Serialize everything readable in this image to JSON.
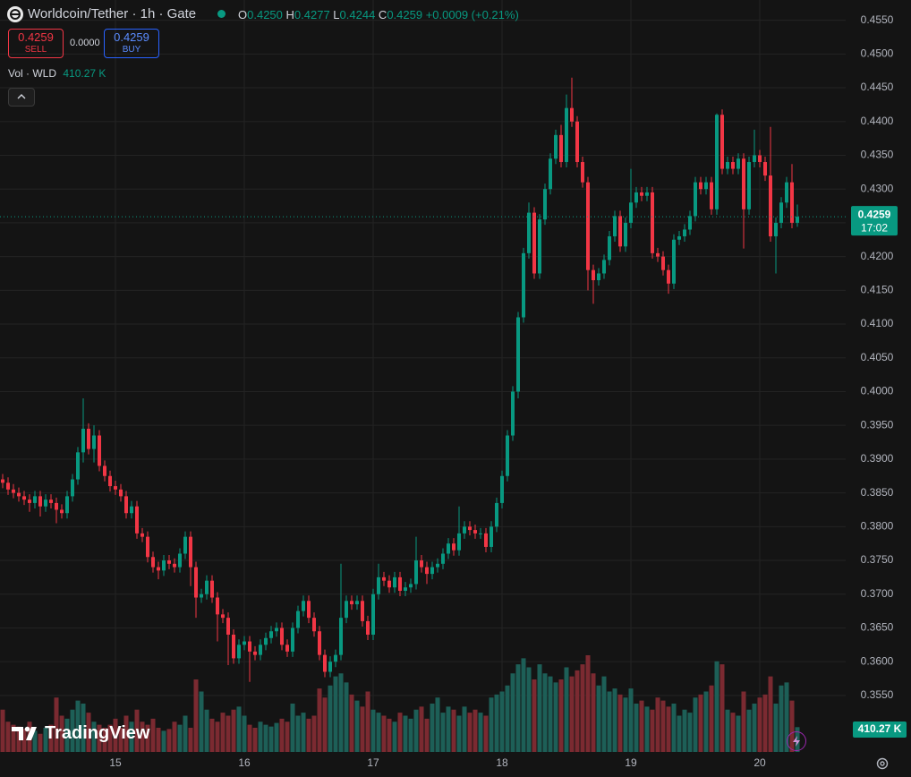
{
  "header": {
    "symbol": "Worldcoin/Tether · 1h · Gate",
    "ohlc": [
      {
        "label": "O",
        "value": "0.4250"
      },
      {
        "label": "H",
        "value": "0.4277"
      },
      {
        "label": "L",
        "value": "0.4244"
      },
      {
        "label": "C",
        "value": "0.4259"
      }
    ],
    "change": "+0.0009 (+0.21%)",
    "sell_price": "0.4259",
    "sell": "SELL",
    "spread": "0.0000",
    "buy_price": "0.4259",
    "buy": "BUY",
    "volume_title": "Vol · WLD",
    "volume_value": "410.27 K"
  },
  "branding": "TradingView",
  "chart_data": {
    "type": "candlestick",
    "candles": [
      [
        0.387,
        0.3878,
        0.3857,
        0.3865
      ],
      [
        0.3865,
        0.3873,
        0.3847,
        0.3855
      ],
      [
        0.3855,
        0.3863,
        0.3842,
        0.385
      ],
      [
        0.385,
        0.3858,
        0.3837,
        0.3845
      ],
      [
        0.3845,
        0.3853,
        0.3832,
        0.384
      ],
      [
        0.384,
        0.3848,
        0.3822,
        0.3835
      ],
      [
        0.3835,
        0.3853,
        0.3827,
        0.3845
      ],
      [
        0.3845,
        0.3853,
        0.3815,
        0.383
      ],
      [
        0.383,
        0.3848,
        0.3822,
        0.384
      ],
      [
        0.384,
        0.3848,
        0.3827,
        0.3835
      ],
      [
        0.3835,
        0.3843,
        0.3805,
        0.3825
      ],
      [
        0.3825,
        0.3833,
        0.3812,
        0.382
      ],
      [
        0.382,
        0.3853,
        0.3812,
        0.3845
      ],
      [
        0.3845,
        0.3878,
        0.3837,
        0.387
      ],
      [
        0.387,
        0.3918,
        0.3862,
        0.391
      ],
      [
        0.391,
        0.399,
        0.3895,
        0.3945
      ],
      [
        0.3945,
        0.3953,
        0.3907,
        0.3915
      ],
      [
        0.3915,
        0.395,
        0.3895,
        0.3935
      ],
      [
        0.3935,
        0.3943,
        0.3882,
        0.389
      ],
      [
        0.389,
        0.3898,
        0.3867,
        0.3875
      ],
      [
        0.3875,
        0.3883,
        0.3852,
        0.386
      ],
      [
        0.386,
        0.3868,
        0.3847,
        0.3855
      ],
      [
        0.3855,
        0.3863,
        0.3837,
        0.3845
      ],
      [
        0.3845,
        0.3853,
        0.3812,
        0.382
      ],
      [
        0.382,
        0.3838,
        0.3812,
        0.383
      ],
      [
        0.383,
        0.3838,
        0.3782,
        0.379
      ],
      [
        0.379,
        0.3798,
        0.3777,
        0.3785
      ],
      [
        0.3785,
        0.3793,
        0.3747,
        0.3755
      ],
      [
        0.3755,
        0.3763,
        0.3732,
        0.374
      ],
      [
        0.374,
        0.3748,
        0.3722,
        0.3735
      ],
      [
        0.3735,
        0.3758,
        0.3727,
        0.375
      ],
      [
        0.375,
        0.3758,
        0.3737,
        0.3745
      ],
      [
        0.3745,
        0.3753,
        0.3732,
        0.374
      ],
      [
        0.374,
        0.3768,
        0.3732,
        0.376
      ],
      [
        0.376,
        0.3793,
        0.3752,
        0.3785
      ],
      [
        0.3785,
        0.3793,
        0.3712,
        0.374
      ],
      [
        0.374,
        0.3748,
        0.3665,
        0.3695
      ],
      [
        0.3695,
        0.3708,
        0.3687,
        0.37
      ],
      [
        0.37,
        0.3728,
        0.3692,
        0.372
      ],
      [
        0.372,
        0.3728,
        0.3687,
        0.3695
      ],
      [
        0.3695,
        0.3703,
        0.363,
        0.367
      ],
      [
        0.367,
        0.3678,
        0.3657,
        0.3665
      ],
      [
        0.3665,
        0.3673,
        0.3595,
        0.364
      ],
      [
        0.364,
        0.3648,
        0.3597,
        0.3605
      ],
      [
        0.3605,
        0.3633,
        0.3597,
        0.3625
      ],
      [
        0.3625,
        0.3638,
        0.3617,
        0.363
      ],
      [
        0.363,
        0.3638,
        0.357,
        0.3615
      ],
      [
        0.3615,
        0.3623,
        0.3602,
        0.361
      ],
      [
        0.361,
        0.3633,
        0.3602,
        0.3625
      ],
      [
        0.3625,
        0.3643,
        0.3617,
        0.3635
      ],
      [
        0.3635,
        0.3653,
        0.3627,
        0.3645
      ],
      [
        0.3645,
        0.3658,
        0.3637,
        0.365
      ],
      [
        0.365,
        0.3658,
        0.3617,
        0.3625
      ],
      [
        0.3625,
        0.3633,
        0.3607,
        0.3615
      ],
      [
        0.3615,
        0.3658,
        0.3607,
        0.365
      ],
      [
        0.365,
        0.3683,
        0.3642,
        0.3675
      ],
      [
        0.3675,
        0.3698,
        0.3667,
        0.369
      ],
      [
        0.369,
        0.3698,
        0.3657,
        0.3665
      ],
      [
        0.3665,
        0.3673,
        0.3637,
        0.3645
      ],
      [
        0.3645,
        0.3653,
        0.3602,
        0.361
      ],
      [
        0.361,
        0.3618,
        0.3577,
        0.3585
      ],
      [
        0.3585,
        0.3608,
        0.3577,
        0.36
      ],
      [
        0.36,
        0.3618,
        0.3592,
        0.361
      ],
      [
        0.361,
        0.3745,
        0.3602,
        0.3665
      ],
      [
        0.3665,
        0.3698,
        0.3657,
        0.369
      ],
      [
        0.369,
        0.3698,
        0.3677,
        0.3685
      ],
      [
        0.3685,
        0.3698,
        0.3677,
        0.369
      ],
      [
        0.369,
        0.3698,
        0.3652,
        0.366
      ],
      [
        0.366,
        0.3668,
        0.3632,
        0.364
      ],
      [
        0.364,
        0.3708,
        0.3632,
        0.37
      ],
      [
        0.37,
        0.3745,
        0.3692,
        0.3725
      ],
      [
        0.3725,
        0.3733,
        0.3712,
        0.372
      ],
      [
        0.372,
        0.3728,
        0.3702,
        0.371
      ],
      [
        0.371,
        0.3733,
        0.3702,
        0.3725
      ],
      [
        0.3725,
        0.3733,
        0.3697,
        0.3705
      ],
      [
        0.3705,
        0.3718,
        0.3697,
        0.371
      ],
      [
        0.371,
        0.3723,
        0.3702,
        0.3715
      ],
      [
        0.3715,
        0.3785,
        0.3707,
        0.375
      ],
      [
        0.375,
        0.3758,
        0.3732,
        0.374
      ],
      [
        0.374,
        0.3748,
        0.3715,
        0.373
      ],
      [
        0.373,
        0.3748,
        0.3722,
        0.374
      ],
      [
        0.374,
        0.3753,
        0.3732,
        0.3745
      ],
      [
        0.3745,
        0.3768,
        0.3737,
        0.376
      ],
      [
        0.376,
        0.3783,
        0.3752,
        0.3775
      ],
      [
        0.3775,
        0.3783,
        0.3757,
        0.3765
      ],
      [
        0.3765,
        0.383,
        0.3757,
        0.379
      ],
      [
        0.379,
        0.3808,
        0.3782,
        0.38
      ],
      [
        0.38,
        0.3808,
        0.3787,
        0.3795
      ],
      [
        0.3795,
        0.3803,
        0.3782,
        0.379
      ],
      [
        0.379,
        0.3798,
        0.3782,
        0.379
      ],
      [
        0.379,
        0.3798,
        0.3762,
        0.377
      ],
      [
        0.377,
        0.3808,
        0.3762,
        0.38
      ],
      [
        0.38,
        0.3843,
        0.3792,
        0.3835
      ],
      [
        0.3835,
        0.3883,
        0.3827,
        0.3875
      ],
      [
        0.3875,
        0.3943,
        0.3867,
        0.3935
      ],
      [
        0.3935,
        0.4008,
        0.3927,
        0.4
      ],
      [
        0.4,
        0.4118,
        0.399,
        0.411
      ],
      [
        0.411,
        0.4213,
        0.4102,
        0.4205
      ],
      [
        0.4205,
        0.428,
        0.4197,
        0.4265
      ],
      [
        0.4265,
        0.4273,
        0.4167,
        0.4175
      ],
      [
        0.4175,
        0.4263,
        0.4167,
        0.4255
      ],
      [
        0.4255,
        0.4308,
        0.4247,
        0.43
      ],
      [
        0.43,
        0.4353,
        0.4292,
        0.4345
      ],
      [
        0.4345,
        0.4388,
        0.4337,
        0.438
      ],
      [
        0.438,
        0.4395,
        0.4332,
        0.434
      ],
      [
        0.434,
        0.444,
        0.4332,
        0.442
      ],
      [
        0.442,
        0.4465,
        0.4392,
        0.44
      ],
      [
        0.44,
        0.4408,
        0.4332,
        0.434
      ],
      [
        0.434,
        0.4348,
        0.4302,
        0.431
      ],
      [
        0.431,
        0.4318,
        0.415,
        0.418
      ],
      [
        0.418,
        0.4188,
        0.413,
        0.4165
      ],
      [
        0.4165,
        0.4183,
        0.4157,
        0.4175
      ],
      [
        0.4175,
        0.4203,
        0.4167,
        0.4195
      ],
      [
        0.4195,
        0.4238,
        0.4187,
        0.423
      ],
      [
        0.423,
        0.4268,
        0.4222,
        0.426
      ],
      [
        0.426,
        0.4268,
        0.4207,
        0.4215
      ],
      [
        0.4215,
        0.4258,
        0.4207,
        0.425
      ],
      [
        0.425,
        0.433,
        0.4242,
        0.428
      ],
      [
        0.428,
        0.4303,
        0.4272,
        0.4295
      ],
      [
        0.4295,
        0.4303,
        0.4282,
        0.429
      ],
      [
        0.429,
        0.4303,
        0.4282,
        0.4295
      ],
      [
        0.4295,
        0.4303,
        0.4197,
        0.4205
      ],
      [
        0.4205,
        0.4213,
        0.4192,
        0.42
      ],
      [
        0.42,
        0.4208,
        0.4172,
        0.418
      ],
      [
        0.418,
        0.4188,
        0.4145,
        0.416
      ],
      [
        0.416,
        0.4233,
        0.4152,
        0.4225
      ],
      [
        0.4225,
        0.4238,
        0.4217,
        0.423
      ],
      [
        0.423,
        0.4248,
        0.4222,
        0.424
      ],
      [
        0.424,
        0.4268,
        0.4232,
        0.426
      ],
      [
        0.426,
        0.4318,
        0.4252,
        0.431
      ],
      [
        0.431,
        0.4318,
        0.4292,
        0.43
      ],
      [
        0.43,
        0.4318,
        0.4292,
        0.431
      ],
      [
        0.431,
        0.4318,
        0.4262,
        0.427
      ],
      [
        0.427,
        0.4412,
        0.4262,
        0.441
      ],
      [
        0.441,
        0.4418,
        0.4322,
        0.433
      ],
      [
        0.433,
        0.4348,
        0.4322,
        0.434
      ],
      [
        0.434,
        0.4348,
        0.4322,
        0.433
      ],
      [
        0.433,
        0.4353,
        0.4322,
        0.4345
      ],
      [
        0.4345,
        0.4353,
        0.4212,
        0.427
      ],
      [
        0.427,
        0.4348,
        0.4262,
        0.434
      ],
      [
        0.434,
        0.4388,
        0.4332,
        0.435
      ],
      [
        0.435,
        0.4358,
        0.4332,
        0.434
      ],
      [
        0.434,
        0.4348,
        0.4312,
        0.432
      ],
      [
        0.432,
        0.4392,
        0.4222,
        0.423
      ],
      [
        0.423,
        0.4258,
        0.4175,
        0.425
      ],
      [
        0.425,
        0.4288,
        0.4242,
        0.428
      ],
      [
        0.428,
        0.4318,
        0.4272,
        0.431
      ],
      [
        0.431,
        0.4337,
        0.4242,
        0.425
      ],
      [
        0.425,
        0.4277,
        0.4244,
        0.4259
      ]
    ],
    "volume": [
      700,
      500,
      450,
      420,
      380,
      500,
      350,
      300,
      400,
      450,
      900,
      600,
      550,
      700,
      850,
      800,
      650,
      500,
      450,
      400,
      450,
      550,
      400,
      600,
      500,
      700,
      500,
      450,
      550,
      400,
      350,
      380,
      500,
      450,
      600,
      400,
      1200,
      1000,
      700,
      550,
      500,
      650,
      600,
      700,
      750,
      600,
      450,
      400,
      500,
      450,
      420,
      480,
      550,
      500,
      800,
      600,
      650,
      550,
      600,
      1050,
      900,
      1100,
      1250,
      1300,
      1150,
      950,
      850,
      750,
      1000,
      700,
      650,
      600,
      550,
      500,
      650,
      600,
      550,
      700,
      750,
      550,
      800,
      900,
      650,
      750,
      700,
      600,
      750,
      650,
      700,
      650,
      600,
      900,
      950,
      1000,
      1100,
      1300,
      1450,
      1550,
      1400,
      1200,
      1450,
      1300,
      1250,
      1150,
      1200,
      1400,
      1250,
      1350,
      1450,
      1600,
      1300,
      1100,
      1250,
      1000,
      1050,
      950,
      900,
      1050,
      800,
      850,
      750,
      700,
      900,
      850,
      750,
      800,
      600,
      700,
      650,
      900,
      950,
      1000,
      1100,
      1500,
      1450,
      700,
      650,
      600,
      1000,
      700,
      800,
      900,
      950,
      1250,
      800,
      1100,
      1150,
      850,
      410.27
    ],
    "volume_tag": "410.27 K",
    "ylim": [
      0.3465,
      0.458
    ],
    "yticks": [
      {
        "value": 0.355,
        "label": "0.3550"
      },
      {
        "value": 0.36,
        "label": "0.3600"
      },
      {
        "value": 0.365,
        "label": "0.3650"
      },
      {
        "value": 0.37,
        "label": "0.3700"
      },
      {
        "value": 0.375,
        "label": "0.3750"
      },
      {
        "value": 0.38,
        "label": "0.3800"
      },
      {
        "value": 0.385,
        "label": "0.3850"
      },
      {
        "value": 0.39,
        "label": "0.3900"
      },
      {
        "value": 0.395,
        "label": "0.3950"
      },
      {
        "value": 0.4,
        "label": "0.4000"
      },
      {
        "value": 0.405,
        "label": "0.4050"
      },
      {
        "value": 0.41,
        "label": "0.4100"
      },
      {
        "value": 0.415,
        "label": "0.4150"
      },
      {
        "value": 0.42,
        "label": "0.4200"
      },
      {
        "value": 0.425,
        "label": "0.4250"
      },
      {
        "value": 0.43,
        "label": "0.4300"
      },
      {
        "value": 0.435,
        "label": "0.4350"
      },
      {
        "value": 0.44,
        "label": "0.4400"
      },
      {
        "value": 0.445,
        "label": "0.4450"
      },
      {
        "value": 0.45,
        "label": "0.4500"
      },
      {
        "value": 0.455,
        "label": "0.4550"
      }
    ],
    "xticks": [
      {
        "value": 21,
        "label": "15"
      },
      {
        "value": 45,
        "label": "16"
      },
      {
        "value": 69,
        "label": "17"
      },
      {
        "value": 93,
        "label": "18"
      },
      {
        "value": 117,
        "label": "19"
      },
      {
        "value": 141,
        "label": "20"
      }
    ],
    "last_price": {
      "value": 0.4259,
      "label": "0.4259",
      "countdown": "17:02"
    },
    "colors": {
      "up": "#089981",
      "down": "#f23645",
      "up_volume": "#1d5f57",
      "down_volume": "#7b2a31"
    },
    "grid": true
  }
}
